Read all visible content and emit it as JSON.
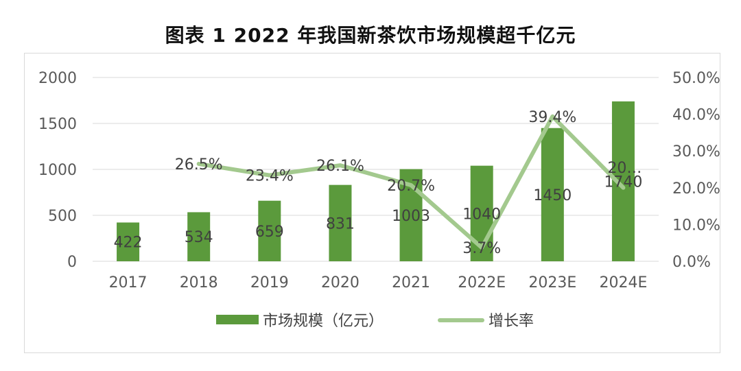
{
  "chart_data": {
    "type": "bar+line",
    "title": "图表 1 2022 年我国新茶饮市场规模超千亿元",
    "categories": [
      "2017",
      "2018",
      "2019",
      "2020",
      "2021",
      "2022E",
      "2023E",
      "2024E"
    ],
    "series": [
      {
        "name": "市场规模（亿元）",
        "type": "bar",
        "axis": "left",
        "values": [
          422,
          534,
          659,
          831,
          1003,
          1040,
          1450,
          1740
        ],
        "labels": [
          "422",
          "534",
          "659",
          "831",
          "1003",
          "1040",
          "1450",
          "1740"
        ],
        "color": "#5b9a3c"
      },
      {
        "name": "增长率",
        "type": "line",
        "axis": "right",
        "values": [
          null,
          26.5,
          23.4,
          26.1,
          20.7,
          3.7,
          39.4,
          20.0
        ],
        "labels": [
          "",
          "26.5%",
          "23.4%",
          "26.1%",
          "20.7%",
          "3.7%",
          "39.4%",
          "20…"
        ],
        "color": "#a3c98e"
      }
    ],
    "y_left": {
      "min": 0,
      "max": 2000,
      "ticks": [
        "0",
        "500",
        "1000",
        "1500",
        "2000"
      ]
    },
    "y_right": {
      "min": 0,
      "max": 50,
      "ticks": [
        "0.0%",
        "10.0%",
        "20.0%",
        "30.0%",
        "40.0%",
        "50.0%"
      ]
    },
    "grid": true,
    "legend": "bottom"
  }
}
